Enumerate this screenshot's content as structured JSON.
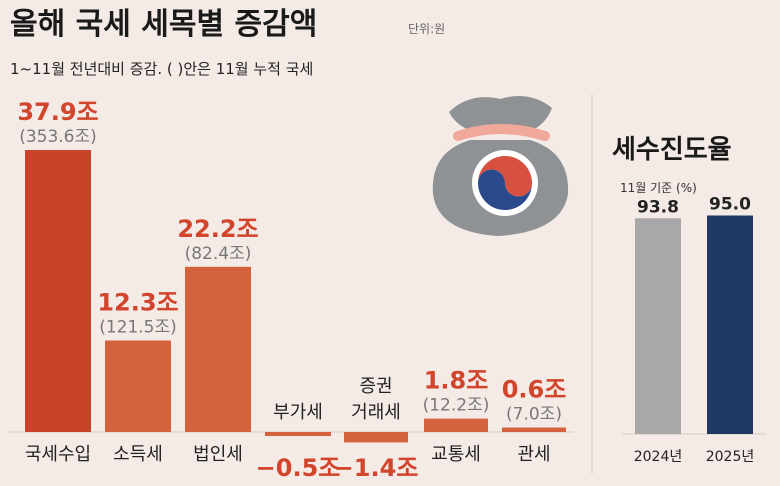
{
  "header": {
    "title": "올해 국세 세목별 증감액",
    "unit_note": "단위:원",
    "subtitle": "1~11월 전년대비 증감. ( )안은 11월 누적 국세"
  },
  "chart_data": [
    {
      "type": "bar",
      "categories": [
        "국세수입",
        "소득세",
        "법인세",
        "부가세",
        "증권거래세",
        "교통세",
        "관세"
      ],
      "category_lines": [
        [
          "국세수입"
        ],
        [
          "소득세"
        ],
        [
          "법인세"
        ],
        [
          "부가세"
        ],
        [
          "증권",
          "거래세"
        ],
        [
          "교통세"
        ],
        [
          "관세"
        ]
      ],
      "values": [
        37.9,
        12.3,
        22.2,
        -0.5,
        -1.4,
        1.8,
        0.6
      ],
      "value_labels": [
        "37.9조",
        "12.3조",
        "22.2조",
        "−0.5조",
        "−1.4조",
        "1.8조",
        "0.6조"
      ],
      "cumulative_labels": [
        "(353.6조)",
        "(121.5조)",
        "(82.4조)",
        "",
        "",
        "(12.2조)",
        "(7.0조)"
      ],
      "colors": [
        "#c9432a",
        "#d4623f",
        "#d4623f",
        "#d4623f",
        "#d4623f",
        "#d4623f",
        "#d4623f"
      ],
      "label_color": "#d2452c",
      "ylim": [
        -1.4,
        37.9
      ]
    },
    {
      "type": "bar",
      "title": "세수진도율",
      "subtitle": "11월 기준 (%)",
      "categories": [
        "2024년",
        "2025년"
      ],
      "values": [
        93.8,
        95.0
      ],
      "value_labels": [
        "93.8",
        "95.0"
      ],
      "colors": [
        "#a8a8a8",
        "#1f3865"
      ]
    }
  ],
  "illustration": {
    "icon": "money-bag-icon"
  }
}
